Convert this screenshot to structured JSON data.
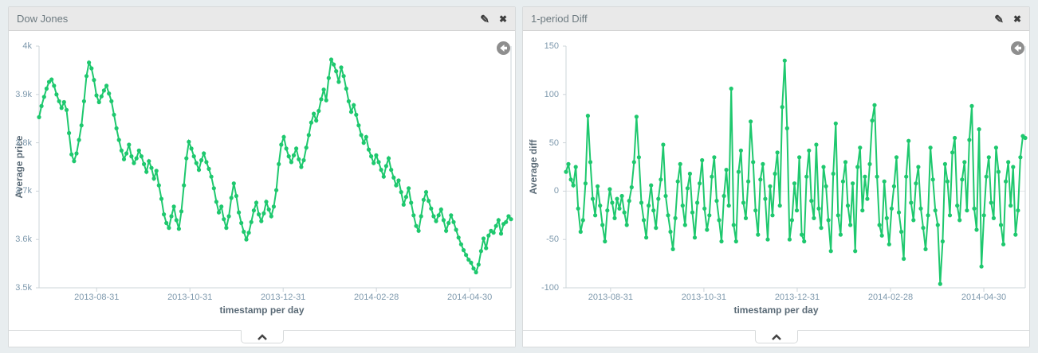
{
  "colors": {
    "page_bg": "#e8edef",
    "panel_header_bg": "#e9e9e9",
    "series_green": "#1ec86e",
    "axis_title": "#5b6b77",
    "tick_label": "#7e99ad",
    "axis_line": "#ccd4d9",
    "icon_dark": "#3d3d3d",
    "back_circle_gray": "#8e8e8e"
  },
  "icons": {
    "edit": "✎",
    "close": "✖",
    "collapse": "chevron-up",
    "back": "arrow-circle-left"
  },
  "chart_data": [
    {
      "type": "line",
      "title": "Dow Jones",
      "xlabel": "timestamp per day",
      "ylabel": "Average price",
      "x_ticks": [
        "2013-08-31",
        "2013-10-31",
        "2013-12-31",
        "2014-02-28",
        "2014-04-30"
      ],
      "y_ticks": [
        "4k",
        "3.9k",
        "3.8k",
        "3.7k",
        "3.6k",
        "3.5k"
      ],
      "ylim": [
        3500,
        4000
      ],
      "zero_line": false,
      "grid": false,
      "legend": "none",
      "series": [
        {
          "name": "Average price",
          "color": "#1ec86e",
          "values": [
            3853,
            3876,
            3895,
            3912,
            3926,
            3931,
            3918,
            3900,
            3886,
            3872,
            3884,
            3868,
            3820,
            3776,
            3762,
            3778,
            3806,
            3836,
            3886,
            3938,
            3966,
            3954,
            3930,
            3898,
            3884,
            3896,
            3908,
            3918,
            3902,
            3886,
            3858,
            3830,
            3806,
            3784,
            3766,
            3778,
            3796,
            3772,
            3758,
            3768,
            3784,
            3772,
            3756,
            3740,
            3762,
            3748,
            3726,
            3742,
            3712,
            3684,
            3652,
            3634,
            3624,
            3648,
            3668,
            3640,
            3622,
            3658,
            3712,
            3768,
            3802,
            3788,
            3772,
            3758,
            3744,
            3764,
            3778,
            3760,
            3746,
            3730,
            3706,
            3678,
            3656,
            3668,
            3642,
            3624,
            3648,
            3686,
            3716,
            3690,
            3656,
            3634,
            3616,
            3600,
            3614,
            3636,
            3660,
            3676,
            3652,
            3638,
            3654,
            3678,
            3662,
            3648,
            3668,
            3702,
            3756,
            3796,
            3812,
            3788,
            3772,
            3760,
            3774,
            3788,
            3766,
            3750,
            3764,
            3790,
            3816,
            3842,
            3860,
            3846,
            3866,
            3890,
            3910,
            3888,
            3934,
            3972,
            3962,
            3948,
            3926,
            3956,
            3938,
            3912,
            3886,
            3864,
            3878,
            3858,
            3836,
            3816,
            3800,
            3812,
            3786,
            3772,
            3758,
            3774,
            3760,
            3744,
            3730,
            3752,
            3768,
            3744,
            3728,
            3712,
            3722,
            3698,
            3672,
            3688,
            3706,
            3676,
            3650,
            3628,
            3618,
            3648,
            3682,
            3698,
            3680,
            3664,
            3648,
            3638,
            3650,
            3662,
            3640,
            3618,
            3634,
            3650,
            3636,
            3620,
            3604,
            3590,
            3578,
            3568,
            3558,
            3552,
            3540,
            3532,
            3548,
            3576,
            3602,
            3582,
            3608,
            3618,
            3614,
            3628,
            3640,
            3612,
            3632,
            3636,
            3648,
            3642
          ]
        }
      ]
    },
    {
      "type": "line",
      "title": "1-period Diff",
      "xlabel": "timestamp per day",
      "ylabel": "Average diff",
      "x_ticks": [
        "2013-08-31",
        "2013-10-31",
        "2013-12-31",
        "2014-02-28",
        "2014-04-30"
      ],
      "y_ticks": [
        "150",
        "100",
        "50",
        "0",
        "-50",
        "-100"
      ],
      "ylim": [
        -100,
        150
      ],
      "zero_line": true,
      "grid": false,
      "legend": "none",
      "series": [
        {
          "name": "Average diff",
          "color": "#1ec86e",
          "values": [
            20,
            28,
            12,
            6,
            25,
            -18,
            -42,
            -30,
            8,
            78,
            30,
            -8,
            -25,
            5,
            -15,
            -35,
            -52,
            -20,
            2,
            -12,
            -28,
            -8,
            -18,
            -5,
            -22,
            -35,
            -10,
            4,
            30,
            77,
            35,
            -12,
            -30,
            -48,
            -15,
            6,
            -20,
            -38,
            -8,
            12,
            48,
            -5,
            -25,
            -42,
            -60,
            -28,
            10,
            28,
            -15,
            -35,
            3,
            18,
            -22,
            -48,
            -12,
            8,
            32,
            -18,
            -40,
            -25,
            15,
            35,
            -10,
            -30,
            -52,
            -5,
            22,
            -15,
            106,
            -35,
            -52,
            20,
            42,
            -12,
            -28,
            10,
            72,
            30,
            -20,
            -45,
            12,
            28,
            -8,
            -50,
            5,
            -25,
            18,
            40,
            -15,
            87,
            135,
            65,
            -50,
            -30,
            8,
            -20,
            35,
            -45,
            -52,
            15,
            42,
            -10,
            -28,
            48,
            -18,
            -38,
            25,
            5,
            -30,
            -62,
            18,
            70,
            -25,
            -45,
            10,
            30,
            -15,
            -35,
            8,
            -62,
            25,
            45,
            -20,
            15,
            -8,
            28,
            73,
            89,
            15,
            -35,
            -46,
            10,
            -28,
            -55,
            -18,
            5,
            35,
            -22,
            -42,
            -70,
            15,
            52,
            -12,
            -30,
            8,
            25,
            -18,
            -38,
            -60,
            -25,
            45,
            12,
            -20,
            -35,
            -96,
            -52,
            28,
            10,
            -25,
            40,
            55,
            -15,
            -30,
            12,
            30,
            -20,
            53,
            88,
            -18,
            -40,
            64,
            -78,
            -25,
            15,
            35,
            -12,
            -28,
            45,
            20,
            -35,
            -55,
            10,
            30,
            -15,
            25,
            -45,
            -20,
            35,
            57,
            55
          ]
        }
      ]
    }
  ]
}
